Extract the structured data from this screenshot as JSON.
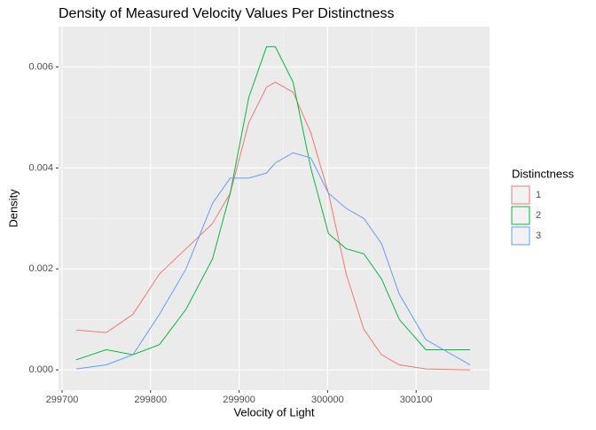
{
  "chart_data": {
    "type": "line",
    "title": "Density of Measured Velocity Values Per Distinctness",
    "x_label": "Velocity of Light",
    "y_label": "Density",
    "legend_title": "Distinctness",
    "x": [
      299716,
      299750,
      299780,
      299810,
      299840,
      299870,
      299890,
      299911,
      299931,
      299941,
      299961,
      299981,
      300001,
      300021,
      300041,
      300061,
      300081,
      300111,
      300161
    ],
    "series": [
      {
        "name": "1",
        "color": "#f8766d",
        "values": [
          0.00079,
          0.00074,
          0.0011,
          0.0019,
          0.0024,
          0.0029,
          0.0035,
          0.0049,
          0.0056,
          0.0057,
          0.0055,
          0.0047,
          0.0035,
          0.0019,
          0.0008,
          0.0003,
          0.0001,
          2e-05,
          0.0
        ]
      },
      {
        "name": "2",
        "color": "#00ba38",
        "values": [
          0.0002,
          0.0004,
          0.0003,
          0.0005,
          0.0012,
          0.0022,
          0.0035,
          0.0054,
          0.0064,
          0.0064,
          0.0057,
          0.004,
          0.0027,
          0.0024,
          0.0023,
          0.0018,
          0.001,
          0.0004,
          0.0004
        ]
      },
      {
        "name": "3",
        "color": "#619cff",
        "values": [
          2e-05,
          0.0001,
          0.0003,
          0.0011,
          0.002,
          0.0033,
          0.0038,
          0.0038,
          0.0039,
          0.0041,
          0.0043,
          0.0042,
          0.0035,
          0.0032,
          0.003,
          0.0025,
          0.0015,
          0.0006,
          0.0001
        ]
      }
    ],
    "xlim": [
      299696,
      300183
    ],
    "xticks": [
      299700,
      299800,
      299900,
      300000,
      300100
    ],
    "ylim": [
      -0.0004,
      0.0068
    ],
    "yticks": [
      {
        "value": 0,
        "label": "0.000"
      },
      {
        "value": 0.002,
        "label": "0.002"
      },
      {
        "value": 0.004,
        "label": "0.004"
      },
      {
        "value": 0.006,
        "label": "0.006"
      }
    ],
    "grid": true,
    "legend": "right"
  }
}
